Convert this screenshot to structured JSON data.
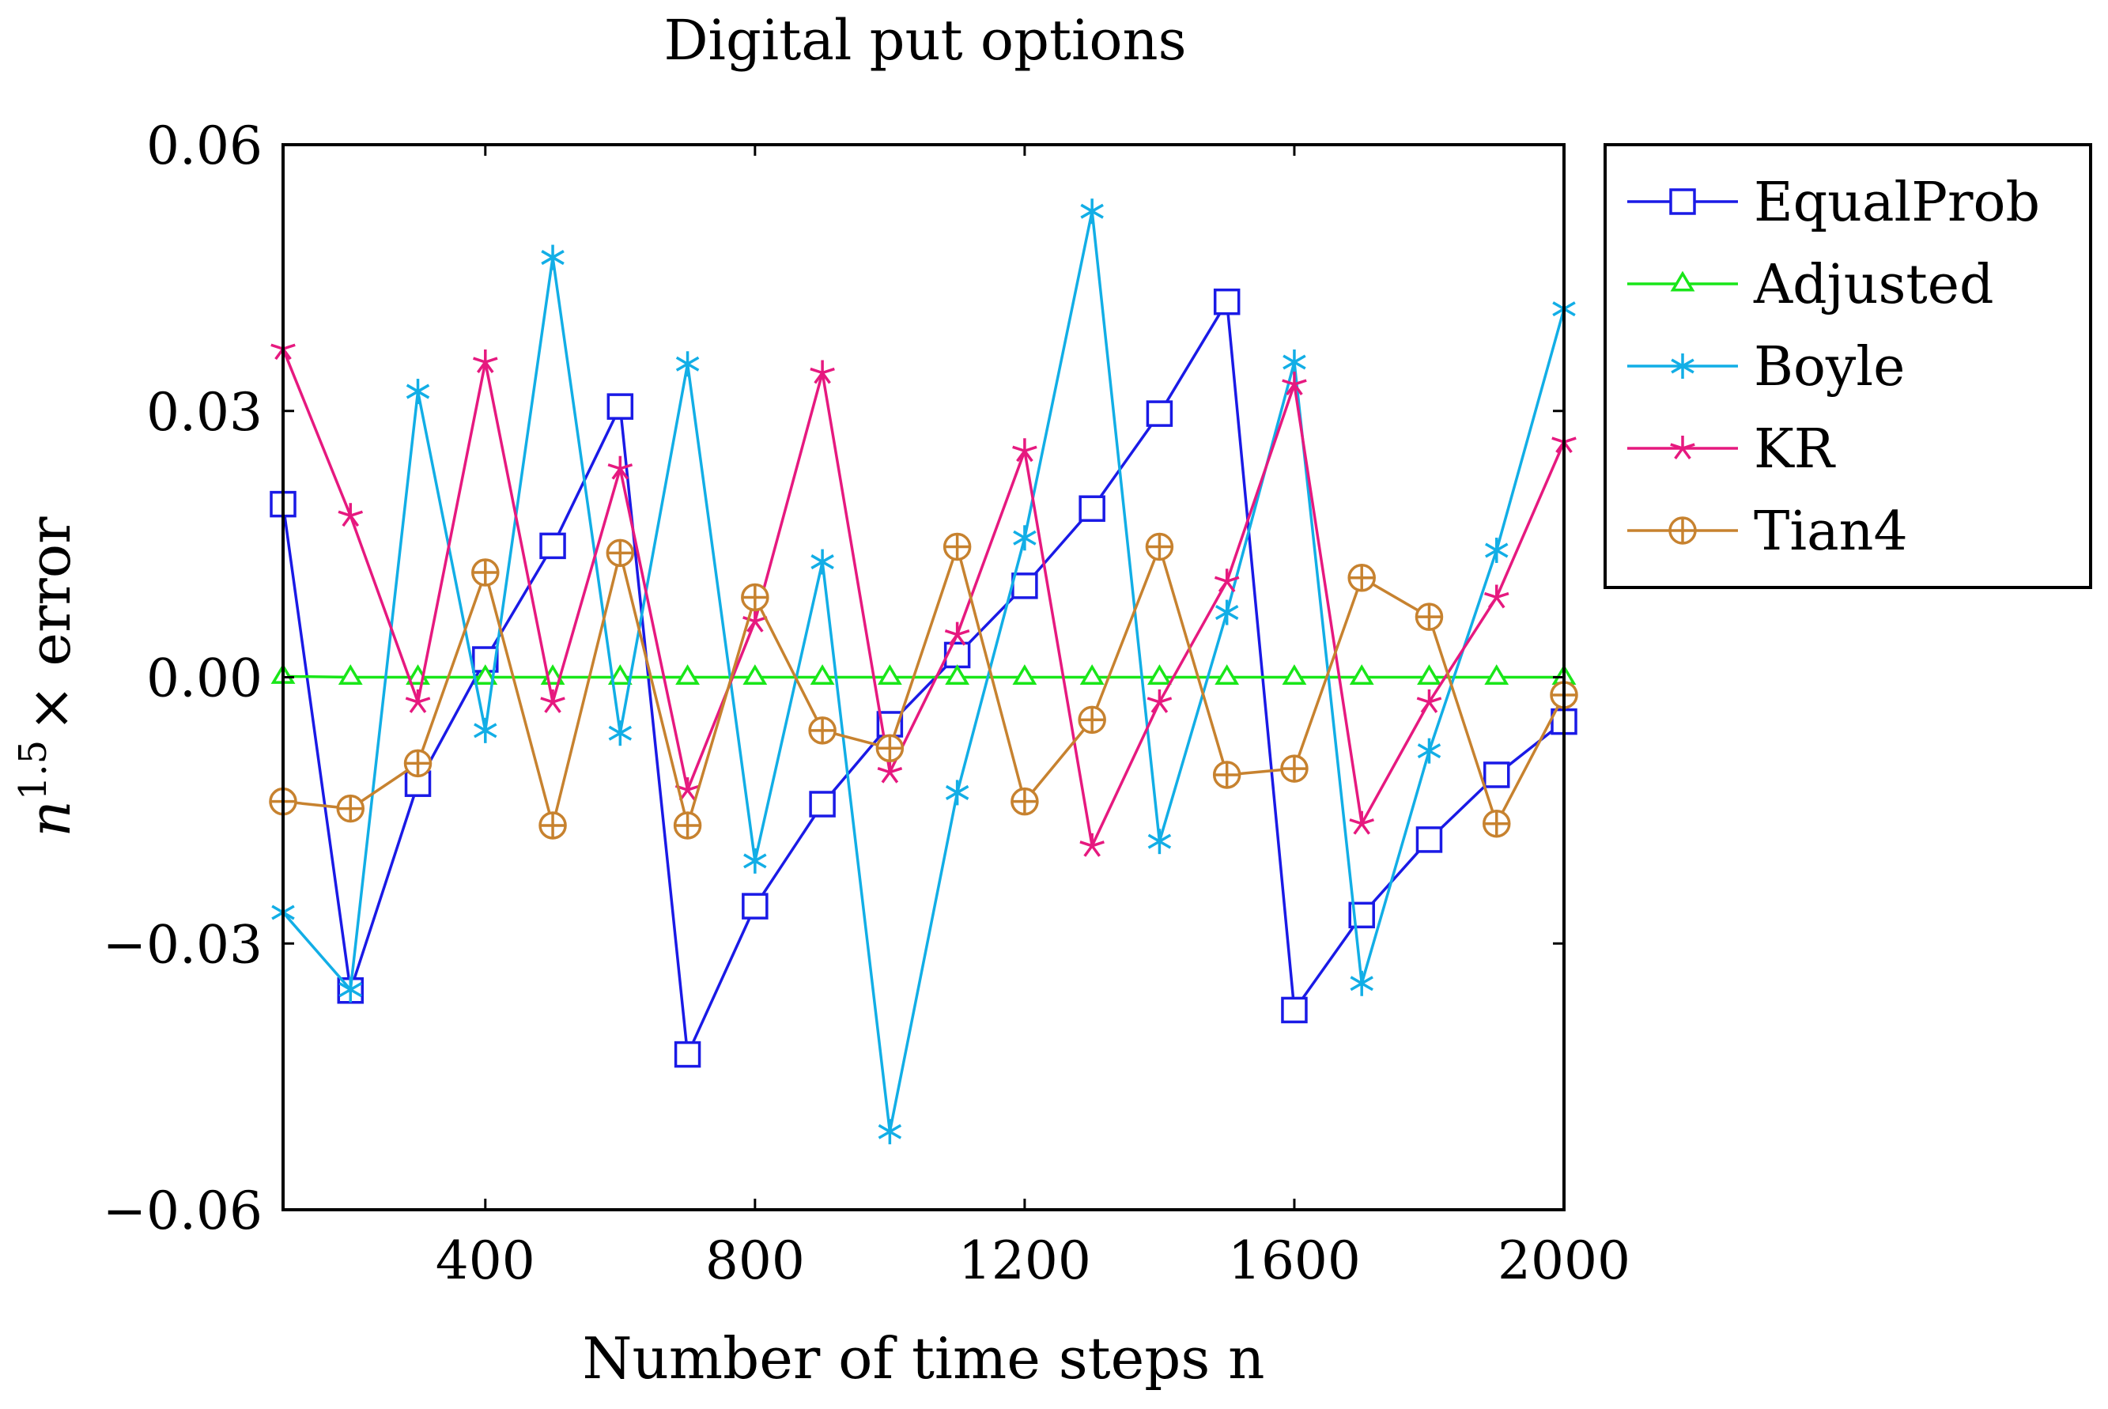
{
  "chart_data": {
    "type": "line",
    "title": "Digital put options",
    "xlabel": "Number of time steps n",
    "ylabel": "n^{1.5} × error",
    "ylabel_parts": {
      "base": "n",
      "exp": "1.5",
      "rest": "× error"
    },
    "xlim": [
      100,
      2000
    ],
    "ylim": [
      -0.06,
      0.06
    ],
    "xticks": [
      400,
      800,
      1200,
      1600,
      2000
    ],
    "xtick_labels": [
      "400",
      "800",
      "1200",
      "1600",
      "2000"
    ],
    "yticks": [
      0.06,
      0.03,
      0.0,
      -0.03,
      -0.06
    ],
    "ytick_labels": [
      "0.06",
      "0.03",
      "0.00",
      "−0.03",
      "−0.06"
    ],
    "grid": false,
    "legend_position": "outside-right-top",
    "x": [
      100,
      200,
      300,
      400,
      500,
      600,
      700,
      800,
      900,
      1000,
      1100,
      1200,
      1300,
      1400,
      1500,
      1600,
      1700,
      1800,
      1900,
      2000
    ],
    "series": [
      {
        "name": "EqualProb",
        "color": "#1a1ae6",
        "marker": "square",
        "values": [
          0.0195,
          -0.0353,
          -0.012,
          0.002,
          0.0148,
          0.0305,
          -0.0425,
          -0.0258,
          -0.0143,
          -0.0053,
          0.0025,
          0.0103,
          0.019,
          0.0297,
          0.0423,
          -0.0375,
          -0.0268,
          -0.0183,
          -0.011,
          -0.005
        ]
      },
      {
        "name": "Adjusted",
        "color": "#19e619",
        "marker": "triangle",
        "values": [
          0.0001,
          0.0,
          0.0,
          0.0,
          0.0,
          0.0,
          0.0,
          0.0,
          0.0,
          0.0,
          0.0,
          0.0,
          0.0,
          0.0,
          0.0,
          0.0,
          0.0,
          0.0,
          0.0,
          0.0
        ]
      },
      {
        "name": "Boyle",
        "color": "#12aee6",
        "marker": "asterisk",
        "values": [
          -0.0265,
          -0.0352,
          0.0322,
          -0.006,
          0.0473,
          -0.0063,
          0.0353,
          -0.0207,
          0.013,
          -0.0512,
          -0.013,
          0.0157,
          0.0525,
          -0.0185,
          0.0073,
          0.0355,
          -0.0345,
          -0.0083,
          0.0143,
          0.0415
        ]
      },
      {
        "name": "KR",
        "color": "#e6197f",
        "marker": "star",
        "values": [
          0.037,
          0.0182,
          -0.0028,
          0.0355,
          -0.0028,
          0.0235,
          -0.0127,
          0.0063,
          0.0343,
          -0.0107,
          0.0048,
          0.0255,
          -0.019,
          -0.0028,
          0.0108,
          0.033,
          -0.0165,
          -0.0028,
          0.009,
          0.0265
        ]
      },
      {
        "name": "Tian4",
        "color": "#c7822f",
        "marker": "oplus",
        "values": [
          -0.014,
          -0.0148,
          -0.0097,
          0.0118,
          -0.0167,
          0.014,
          -0.0167,
          0.009,
          -0.006,
          -0.008,
          0.0147,
          -0.014,
          -0.0048,
          0.0147,
          -0.011,
          -0.0103,
          0.0112,
          0.0068,
          -0.0165,
          -0.002
        ]
      }
    ]
  }
}
